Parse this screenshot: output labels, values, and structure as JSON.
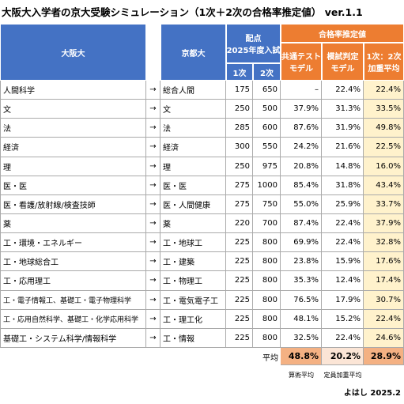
{
  "title": "大阪大入学者の京大受験シミュレーション（1次＋2次の合格率推定値） ver.1.1",
  "table": {
    "headers": {
      "osaka": "大阪大",
      "kyoto": "京都大",
      "score": [
        "配点",
        "2025年度入試"
      ],
      "first": "1次",
      "second": "2次",
      "rate": "合格率推定値",
      "common": [
        "共通テスト",
        "モデル"
      ],
      "mock": [
        "模試判定",
        "モデル"
      ],
      "weighted": [
        "1次：2次",
        "加重平均"
      ]
    },
    "rows": [
      [
        "人間科学",
        "→",
        "総合人間",
        "175",
        "650",
        "–",
        "22.4%",
        "22.4%"
      ],
      [
        "文",
        "→",
        "文",
        "250",
        "500",
        "37.9%",
        "31.3%",
        "33.5%"
      ],
      [
        "法",
        "→",
        "法",
        "285",
        "600",
        "87.6%",
        "31.9%",
        "49.8%"
      ],
      [
        "経済",
        "→",
        "経済",
        "300",
        "550",
        "24.2%",
        "21.6%",
        "22.5%"
      ],
      [
        "理",
        "→",
        "理",
        "250",
        "975",
        "20.8%",
        "14.8%",
        "16.0%"
      ],
      [
        "医・医",
        "→",
        "医・医",
        "275",
        "1000",
        "85.4%",
        "31.8%",
        "43.4%"
      ],
      [
        "医・看護/放射線/検査技師",
        "→",
        "医・人間健康",
        "275",
        "750",
        "55.0%",
        "25.9%",
        "33.7%"
      ],
      [
        "薬",
        "→",
        "薬",
        "220",
        "700",
        "87.4%",
        "22.4%",
        "37.9%"
      ],
      [
        "工・環境・エネルギー",
        "→",
        "工・地球工",
        "225",
        "800",
        "69.9%",
        "22.4%",
        "32.8%"
      ],
      [
        "工・地球総合工",
        "→",
        "工・建築",
        "225",
        "800",
        "23.8%",
        "15.9%",
        "17.6%"
      ],
      [
        "工・応用理工",
        "→",
        "工・物理工",
        "225",
        "800",
        "35.3%",
        "12.4%",
        "17.4%"
      ],
      [
        "工・電子情報工、基礎工・電子物理科学",
        "→",
        "工・電気電子工",
        "225",
        "800",
        "76.5%",
        "17.9%",
        "30.7%"
      ],
      [
        "工・応用自然科学、基礎工・化学応用科学",
        "→",
        "工・理工化",
        "225",
        "800",
        "48.1%",
        "15.2%",
        "22.4%"
      ],
      [
        "基礎工・システム科学/情報科学",
        "→",
        "工・情報",
        "225",
        "800",
        "32.5%",
        "22.4%",
        "24.6%"
      ]
    ],
    "average": {
      "label": "平均",
      "values": [
        "48.8%",
        "20.2%",
        "28.9%"
      ],
      "notes": [
        "算術平均",
        "定員加重平均"
      ]
    }
  },
  "footer": "よはし 2025.2"
}
